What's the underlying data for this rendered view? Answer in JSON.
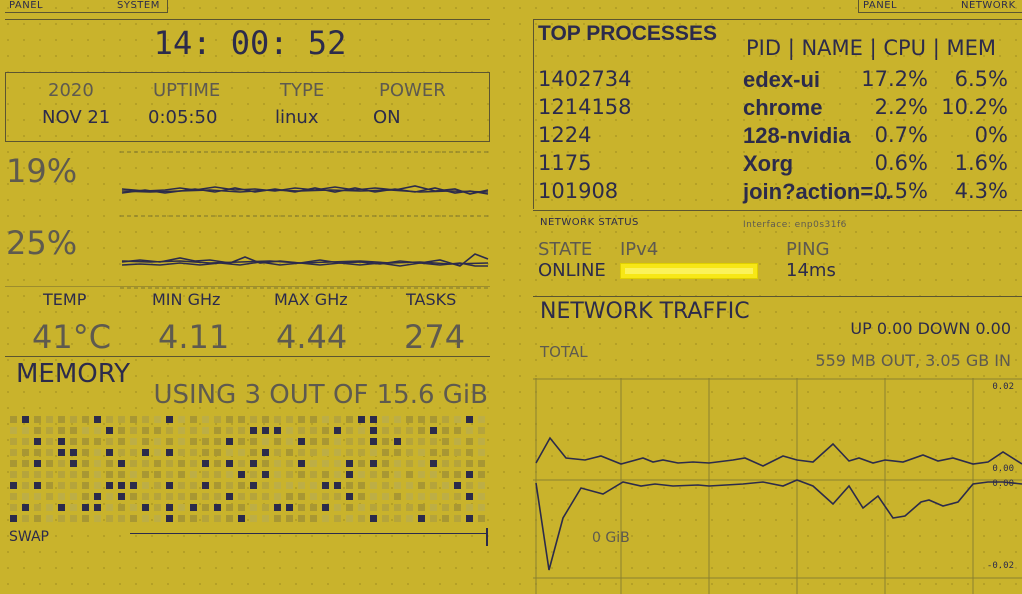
{
  "colors": {
    "bg": "#c9b32c",
    "fg": "#2c2b4b",
    "muted": "#5e5a4f",
    "highlight": "#f7e716",
    "cell_used": "#2c2b4b",
    "cell_light": "#b5a43b",
    "cell_mid": "#a89733",
    "cell_pale": "#bdae45"
  },
  "left_panel": {
    "tag_panel": "PANEL",
    "tag_system": "SYSTEM",
    "clock": "14: 00: 52",
    "info": {
      "year": "2020",
      "date": "NOV 21",
      "uptime_label": "UPTIME",
      "uptime": "0:05:50",
      "type_label": "TYPE",
      "type": "linux",
      "power_label": "POWER",
      "power": "ON"
    },
    "cpu1_percent": "19%",
    "cpu2_percent": "25%",
    "stats": {
      "temp_label": "TEMP",
      "temp": "41°C",
      "min_label": "MIN GHz",
      "min": "4.11",
      "max_label": "MAX GHz",
      "max": "4.44",
      "tasks_label": "TASKS",
      "tasks": "274"
    },
    "memory": {
      "title": "MEMORY",
      "usage": "USING 3 OUT OF 15.6 GiB",
      "swap_label": "SWAP"
    }
  },
  "right_panel": {
    "tag_panel": "PANEL",
    "tag_network": "NETWORK",
    "top_processes": {
      "title": "TOP PROCESSES",
      "header": "PID | NAME | CPU | MEM",
      "rows": [
        {
          "pid": "1402734",
          "name": "edex-ui",
          "cpu": "17.2%",
          "mem": "6.5%"
        },
        {
          "pid": "1214158",
          "name": "chrome",
          "cpu": "2.2%",
          "mem": "10.2%"
        },
        {
          "pid": "1224",
          "name": "128-nvidia",
          "cpu": "0.7%",
          "mem": "0%"
        },
        {
          "pid": "1175",
          "name": "Xorg",
          "cpu": "0.6%",
          "mem": "1.6%"
        },
        {
          "pid": "101908",
          "name": "join?action=...",
          "cpu": "0.5%",
          "mem": "4.3%"
        }
      ]
    },
    "network_status": {
      "title": "NETWORK STATUS",
      "interface": "Interface: enp0s31f6",
      "state_label": "STATE",
      "state": "ONLINE",
      "ipv4_label": "IPv4",
      "ping_label": "PING",
      "ping": "14ms"
    },
    "network_traffic": {
      "title": "NETWORK TRAFFIC",
      "updown": "UP 0.00 DOWN 0.00",
      "total_label": "TOTAL",
      "total": "559 MB OUT, 3.05 GB IN",
      "tick_top": "0.02",
      "tick_mid_a": "0.00",
      "tick_mid_b": "0.00",
      "tick_bottom": "-0.02",
      "gib_label": "0 GiB"
    }
  }
}
